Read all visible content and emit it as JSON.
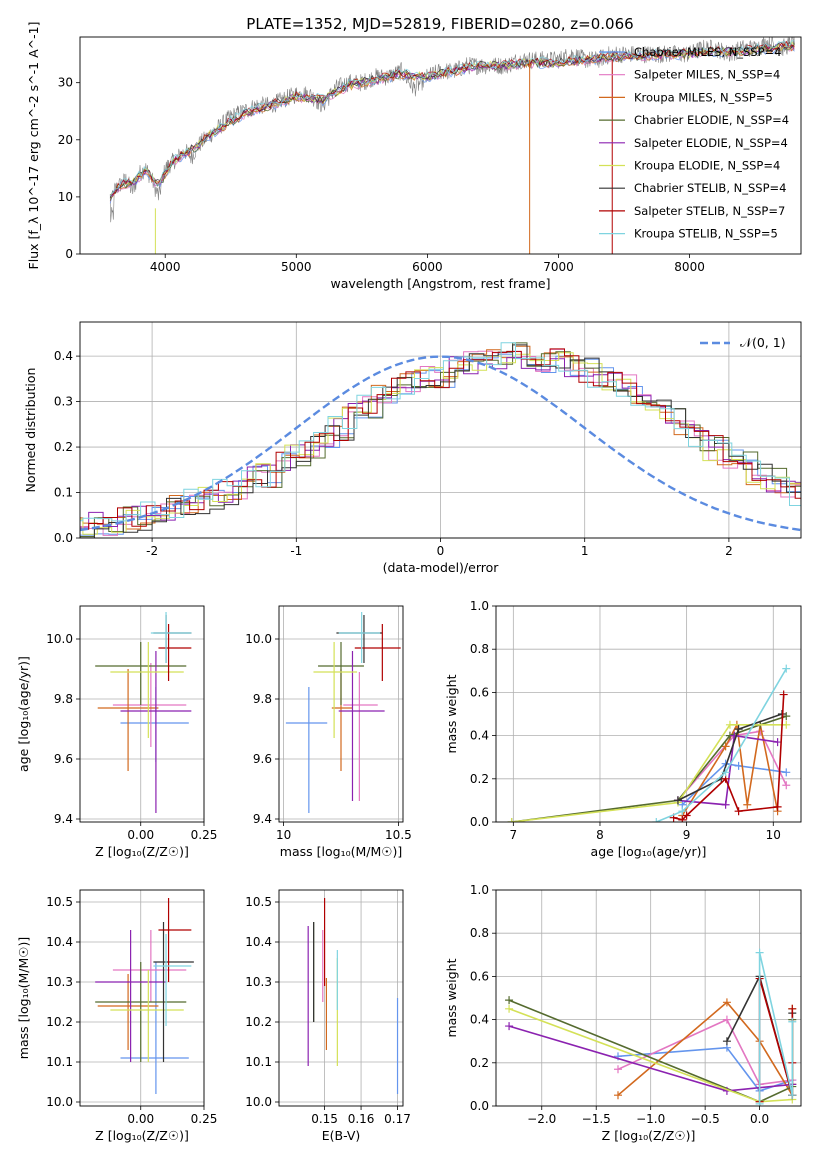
{
  "title": "PLATE=1352, MJD=52819, FIBERID=0280, z=0.066",
  "colors": [
    "#6495ED",
    "#E377C2",
    "#D2691E",
    "#556B2F",
    "#8B22B0",
    "#D4E157",
    "#333333",
    "#B00000",
    "#7FD4E0"
  ],
  "models": [
    "Chabrier MILES, N_SSP=4",
    "Salpeter MILES, N_SSP=4",
    "Kroupa MILES, N_SSP=5",
    "Chabrier ELODIE, N_SSP=4",
    "Salpeter ELODIE, N_SSP=4",
    "Kroupa ELODIE, N_SSP=4",
    "Chabrier STELIB, N_SSP=4",
    "Salpeter STELIB, N_SSP=7",
    "Kroupa STELIB, N_SSP=5"
  ],
  "chart_data": [
    {
      "id": "spectrum",
      "type": "line",
      "title": "PLATE=1352, MJD=52819, FIBERID=0280, z=0.066",
      "xlabel": "wavelength [Angstrom, rest frame]",
      "ylabel": "Flux [f_λ 10^-17 erg cm^-2 s^-1 A^-1]",
      "xlim": [
        3350,
        8850
      ],
      "ylim": [
        0,
        38
      ],
      "xticks": [
        4000,
        5000,
        6000,
        7000,
        8000
      ],
      "yticks": [
        0,
        10,
        20,
        30
      ],
      "legend": "right",
      "data_series": {
        "name": "",
        "color": "#808080",
        "x": [
          3580,
          3600,
          3650,
          3700,
          3750,
          3800,
          3850,
          3900,
          3950,
          4000,
          4050,
          4100,
          4150,
          4200,
          4250,
          4300,
          4350,
          4400,
          4450,
          4500,
          4600,
          4700,
          4800,
          4900,
          5000,
          5100,
          5200,
          5300,
          5400,
          5500,
          5600,
          5700,
          5800,
          5900,
          6000,
          6100,
          6200,
          6300,
          6400,
          6500,
          6600,
          6700,
          6800,
          6900,
          7000,
          7100,
          7200,
          7300,
          7400,
          7500,
          7600,
          7700,
          7800,
          7900,
          8000,
          8100,
          8200,
          8300,
          8400,
          8500,
          8600,
          8700,
          8800
        ],
        "y": [
          10,
          11,
          12,
          13,
          11,
          14,
          15,
          13,
          10,
          15,
          16,
          17,
          18,
          17,
          19,
          20,
          21,
          22,
          23,
          24,
          25,
          26,
          26,
          27,
          28,
          28,
          26,
          29,
          30,
          30,
          31,
          31,
          32,
          29,
          31,
          32,
          32,
          33,
          33,
          33,
          33,
          34,
          34,
          34,
          34,
          35,
          34,
          34,
          35,
          35,
          35,
          35,
          35,
          35,
          35,
          36,
          36,
          35,
          36,
          36,
          37,
          36,
          37
        ]
      },
      "model_series": {
        "x": [
          3580,
          3650,
          3750,
          3850,
          3950,
          4050,
          4150,
          4250,
          4350,
          4450,
          4600,
          4800,
          5000,
          5200,
          5400,
          5600,
          5800,
          6000,
          6200,
          6400,
          6600,
          6800,
          7000,
          7200,
          7400,
          7600,
          7800,
          8000,
          8200,
          8400,
          8600,
          8800
        ],
        "y": [
          9.5,
          12,
          12.5,
          14.5,
          12,
          16,
          17.5,
          19,
          21,
          22.5,
          24.5,
          26,
          27.5,
          27,
          29.5,
          30.5,
          31.5,
          31,
          32,
          33,
          33,
          33.5,
          33.5,
          34,
          34.5,
          34.5,
          35,
          35,
          35.5,
          35.5,
          36,
          36.5
        ]
      }
    },
    {
      "id": "residuals",
      "type": "histogram",
      "xlabel": "(data-model)/error",
      "ylabel": "Normed distribution",
      "xlim": [
        -2.5,
        2.5
      ],
      "ylim": [
        0,
        0.475
      ],
      "xticks": [
        -2,
        -1,
        0,
        1,
        2
      ],
      "yticks": [
        0.0,
        0.1,
        0.2,
        0.3,
        0.4
      ],
      "reference_curve": "𝒩(0, 1)",
      "bin_width": 0.1,
      "legend": "top-right",
      "hist_base": [
        0.02,
        0.03,
        0.03,
        0.04,
        0.04,
        0.05,
        0.06,
        0.07,
        0.08,
        0.09,
        0.1,
        0.11,
        0.13,
        0.14,
        0.16,
        0.18,
        0.2,
        0.22,
        0.24,
        0.27,
        0.29,
        0.31,
        0.33,
        0.34,
        0.35,
        0.36,
        0.37,
        0.38,
        0.39,
        0.39,
        0.4,
        0.4,
        0.39,
        0.39,
        0.38,
        0.37,
        0.36,
        0.35,
        0.33,
        0.31,
        0.29,
        0.27,
        0.24,
        0.22,
        0.2,
        0.18,
        0.16,
        0.14,
        0.13,
        0.11,
        0.1,
        0.09,
        0.08,
        0.07,
        0.06,
        0.05,
        0.05,
        0.04,
        0.04,
        0.03,
        0.03,
        0.03,
        0.03,
        0.02,
        0.02,
        0.02,
        0.03,
        0.03,
        0.03,
        0.04,
        0.04,
        0.04,
        0.03,
        0.03,
        0.03
      ]
    },
    {
      "id": "age-vs-Z",
      "type": "errorbar",
      "xlabel": "Z [log₁₀(Z/Z☉)]",
      "ylabel": "age  [log₁₀(age/yr)]",
      "xlim": [
        -0.24,
        0.25
      ],
      "ylim": [
        9.39,
        10.11
      ],
      "xticks": [
        0.0,
        0.25
      ],
      "xticklabels": [
        "0.00",
        "0.25"
      ],
      "yticks": [
        9.4,
        9.6,
        9.8,
        10.0
      ],
      "points": [
        {
          "x": 0.06,
          "y": 9.72,
          "xerr": [
            0.14,
            0.13
          ],
          "yerr": [
            0.13,
            0.12
          ]
        },
        {
          "x": 0.04,
          "y": 9.78,
          "xerr": [
            0.15,
            0.14
          ],
          "yerr": [
            0.14,
            0.14
          ]
        },
        {
          "x": -0.05,
          "y": 9.77,
          "xerr": [
            0.12,
            0.12
          ],
          "yerr": [
            0.21,
            0.13
          ]
        },
        {
          "x": 0.0,
          "y": 9.91,
          "xerr": [
            0.18,
            0.18
          ],
          "yerr": [
            0.13,
            0.08
          ]
        },
        {
          "x": 0.06,
          "y": 9.76,
          "xerr": [
            0.14,
            0.14
          ],
          "yerr": [
            0.34,
            0.2
          ]
        },
        {
          "x": 0.03,
          "y": 9.89,
          "xerr": [
            0.15,
            0.14
          ],
          "yerr": [
            0.22,
            0.1
          ]
        },
        {
          "x": 0.1,
          "y": 10.02,
          "xerr": [
            0.05,
            0.1
          ],
          "yerr": [
            0.1,
            0.06
          ]
        },
        {
          "x": 0.11,
          "y": 9.97,
          "xerr": [
            0.04,
            0.09
          ],
          "yerr": [
            0.11,
            0.08
          ]
        },
        {
          "x": 0.1,
          "y": 10.02,
          "xerr": [
            0.06,
            0.1
          ],
          "yerr": [
            0.1,
            0.07
          ]
        }
      ]
    },
    {
      "id": "age-vs-mass",
      "type": "errorbar",
      "xlabel": "mass [log₁₀(M/M☉)]",
      "ylabel": "",
      "xlim": [
        9.98,
        10.52
      ],
      "ylim": [
        9.39,
        10.11
      ],
      "xticks": [
        10.0,
        10.5
      ],
      "yticks": [
        9.4,
        9.6,
        9.8,
        10.0
      ],
      "points": [
        {
          "x": 10.11,
          "y": 9.72,
          "xerr": [
            0.1,
            0.08
          ],
          "yerr": [
            0.3,
            0.12
          ]
        },
        {
          "x": 10.33,
          "y": 9.78,
          "xerr": [
            0.07,
            0.08
          ],
          "yerr": [
            0.32,
            0.11
          ]
        },
        {
          "x": 10.25,
          "y": 9.77,
          "xerr": [
            0.04,
            0.05
          ],
          "yerr": [
            0.21,
            0.13
          ]
        },
        {
          "x": 10.25,
          "y": 9.91,
          "xerr": [
            0.1,
            0.1
          ],
          "yerr": [
            0.13,
            0.08
          ]
        },
        {
          "x": 10.3,
          "y": 9.76,
          "xerr": [
            0.06,
            0.14
          ],
          "yerr": [
            0.3,
            0.2
          ]
        },
        {
          "x": 10.22,
          "y": 9.89,
          "xerr": [
            0.09,
            0.1
          ],
          "yerr": [
            0.22,
            0.1
          ]
        },
        {
          "x": 10.35,
          "y": 10.02,
          "xerr": [
            0.12,
            0.08
          ],
          "yerr": [
            0.1,
            0.06
          ]
        },
        {
          "x": 10.43,
          "y": 9.97,
          "xerr": [
            0.12,
            0.08
          ],
          "yerr": [
            0.11,
            0.08
          ]
        },
        {
          "x": 10.34,
          "y": 10.02,
          "xerr": [
            0.1,
            0.08
          ],
          "yerr": [
            0.1,
            0.07
          ]
        }
      ]
    },
    {
      "id": "weight-vs-age",
      "type": "line",
      "xlabel": "age  [log₁₀(age/yr)]",
      "ylabel": "mass weight",
      "xlim": [
        6.8,
        10.32
      ],
      "ylim": [
        0,
        1
      ],
      "xticks": [
        7,
        8,
        9,
        10
      ],
      "yticks": [
        0.0,
        0.2,
        0.4,
        0.6,
        0.8,
        1.0
      ],
      "series": [
        {
          "x": [
            8.95,
            9.45,
            9.6,
            10.15
          ],
          "y": [
            0.08,
            0.27,
            0.26,
            0.23
          ]
        },
        {
          "x": [
            8.9,
            9.55,
            9.85,
            10.15
          ],
          "y": [
            0.1,
            0.4,
            0.42,
            0.17
          ]
        },
        {
          "x": [
            8.95,
            9.45,
            9.58,
            9.7,
            9.85,
            10.05
          ],
          "y": [
            0.03,
            0.35,
            0.45,
            0.08,
            0.45,
            0.05
          ]
        },
        {
          "x": [
            6.98,
            8.9,
            9.5,
            9.85,
            10.15
          ],
          "y": [
            0.0,
            0.1,
            0.4,
            0.45,
            0.49
          ]
        },
        {
          "x": [
            8.9,
            9.45,
            9.55,
            10.05
          ],
          "y": [
            0.1,
            0.08,
            0.4,
            0.37
          ]
        },
        {
          "x": [
            6.98,
            8.9,
            9.5,
            10.15
          ],
          "y": [
            0.0,
            0.09,
            0.45,
            0.45
          ]
        },
        {
          "x": [
            8.9,
            9.4,
            9.6,
            10.1
          ],
          "y": [
            0.1,
            0.2,
            0.43,
            0.5
          ]
        },
        {
          "x": [
            8.85,
            8.95,
            9.0,
            9.45,
            9.6,
            10.05,
            10.12
          ],
          "y": [
            0.02,
            0.01,
            0.03,
            0.2,
            0.05,
            0.07,
            0.59
          ]
        },
        {
          "x": [
            8.65,
            8.95,
            9.45,
            10.15
          ],
          "y": [
            0.0,
            0.05,
            0.23,
            0.71
          ]
        }
      ]
    },
    {
      "id": "mass-vs-Z",
      "type": "errorbar",
      "xlabel": "Z [log₁₀(Z/Z☉)]",
      "ylabel": "mass [log₁₀(M/M☉)]",
      "xlim": [
        -0.24,
        0.25
      ],
      "ylim": [
        9.99,
        10.53
      ],
      "xticks": [
        0.0,
        0.25
      ],
      "xticklabels": [
        "0.00",
        "0.25"
      ],
      "yticks": [
        10.0,
        10.1,
        10.2,
        10.3,
        10.4,
        10.5
      ],
      "points": [
        {
          "x": 0.06,
          "y": 10.11,
          "xerr": [
            0.14,
            0.13
          ],
          "yerr": [
            0.09,
            0.24
          ]
        },
        {
          "x": 0.04,
          "y": 10.33,
          "xerr": [
            0.15,
            0.14
          ],
          "yerr": [
            0.08,
            0.1
          ]
        },
        {
          "x": -0.05,
          "y": 10.24,
          "xerr": [
            0.12,
            0.12
          ],
          "yerr": [
            0.11,
            0.08
          ]
        },
        {
          "x": 0.0,
          "y": 10.25,
          "xerr": [
            0.18,
            0.18
          ],
          "yerr": [
            0.15,
            0.1
          ]
        },
        {
          "x": -0.04,
          "y": 10.3,
          "xerr": [
            0.14,
            0.14
          ],
          "yerr": [
            0.2,
            0.13
          ]
        },
        {
          "x": 0.03,
          "y": 10.23,
          "xerr": [
            0.15,
            0.14
          ],
          "yerr": [
            0.13,
            0.1
          ]
        },
        {
          "x": 0.09,
          "y": 10.35,
          "xerr": [
            0.04,
            0.12
          ],
          "yerr": [
            0.25,
            0.1
          ]
        },
        {
          "x": 0.11,
          "y": 10.43,
          "xerr": [
            0.04,
            0.09
          ],
          "yerr": [
            0.13,
            0.08
          ]
        },
        {
          "x": 0.1,
          "y": 10.34,
          "xerr": [
            0.05,
            0.1
          ],
          "yerr": [
            0.15,
            0.08
          ]
        }
      ]
    },
    {
      "id": "mass-vs-EBV",
      "type": "errorbar",
      "xlabel": "E(B-V)",
      "ylabel": "",
      "xlim": [
        0.1375,
        0.1715
      ],
      "ylim": [
        9.99,
        10.53
      ],
      "xticks": [
        0.15,
        0.16,
        0.17
      ],
      "xticklabels": [
        "0.15",
        "0.16",
        "0.17"
      ],
      "yticks": [
        10.0,
        10.1,
        10.2,
        10.3,
        10.4,
        10.5
      ],
      "points": [
        {
          "x": 0.17,
          "y": 10.12,
          "xerr": [
            0,
            0
          ],
          "yerr": [
            0.1,
            0.14
          ]
        },
        {
          "x": 0.1495,
          "y": 10.33,
          "xerr": [
            0,
            0
          ],
          "yerr": [
            0.08,
            0.1
          ]
        },
        {
          "x": 0.1505,
          "y": 10.25,
          "xerr": [
            0,
            0
          ],
          "yerr": [
            0.12,
            0.06
          ]
        },
        {
          "x": 0.147,
          "y": 10.3,
          "xerr": [
            0,
            0
          ],
          "yerr": [
            0.1,
            0.15
          ]
        },
        {
          "x": 0.1455,
          "y": 10.27,
          "xerr": [
            0,
            0
          ],
          "yerr": [
            0.18,
            0.17
          ]
        },
        {
          "x": 0.1535,
          "y": 10.23,
          "xerr": [
            0,
            0
          ],
          "yerr": [
            0.14,
            0.13
          ]
        },
        {
          "x": 0.147,
          "y": 10.32,
          "xerr": [
            0,
            0
          ],
          "yerr": [
            0.12,
            0.13
          ]
        },
        {
          "x": 0.15,
          "y": 10.38,
          "xerr": [
            0,
            0
          ],
          "yerr": [
            0.09,
            0.13
          ]
        },
        {
          "x": 0.1535,
          "y": 10.33,
          "xerr": [
            0,
            0
          ],
          "yerr": [
            0.1,
            0.05
          ]
        }
      ]
    },
    {
      "id": "weight-vs-Z",
      "type": "line",
      "xlabel": "Z [log₁₀(Z/Z☉)]",
      "ylabel": "mass weight",
      "xlim": [
        -2.42,
        0.38
      ],
      "ylim": [
        0,
        1
      ],
      "xticks": [
        -2.0,
        -1.5,
        -1.0,
        -0.5,
        0.0
      ],
      "xticklabels": [
        "−2.0",
        "−1.5",
        "−1.0",
        "−0.5",
        "0.0"
      ],
      "yticks": [
        0.0,
        0.2,
        0.4,
        0.6,
        0.8,
        1.0
      ],
      "series": [
        {
          "x": [
            -1.3,
            -0.3,
            0.0,
            0.3
          ],
          "y": [
            0.23,
            0.27,
            0.07,
            0.12
          ]
        },
        {
          "x": [
            -1.3,
            -0.3,
            0.0,
            0.3
          ],
          "y": [
            0.17,
            0.4,
            0.1,
            0.12
          ]
        },
        {
          "x": [
            -1.3,
            -0.3,
            0.0,
            0.3,
            0.3
          ],
          "y": [
            0.05,
            0.48,
            0.3,
            0.05,
            0.1
          ]
        },
        {
          "x": [
            -2.3,
            0.0,
            0.3,
            0.3
          ],
          "y": [
            0.49,
            0.02,
            0.09,
            0.4
          ]
        },
        {
          "x": [
            -2.3,
            -0.3,
            0.3
          ],
          "y": [
            0.37,
            0.07,
            0.1
          ]
        },
        {
          "x": [
            -2.3,
            0.0,
            0.3,
            0.3
          ],
          "y": [
            0.45,
            0.02,
            0.03,
            0.45
          ]
        },
        {
          "x": [
            -0.3,
            0.0,
            0.3,
            0.3
          ],
          "y": [
            0.3,
            0.6,
            0.05,
            0.43
          ]
        },
        {
          "x": [
            -0.0,
            0.0,
            0.3,
            0.3,
            0.3
          ],
          "y": [
            0.02,
            0.59,
            0.05,
            0.2,
            0.45
          ]
        },
        {
          "x": [
            -0.0,
            0.0,
            0.3,
            0.3
          ],
          "y": [
            0.01,
            0.71,
            0.05,
            0.39
          ]
        }
      ]
    }
  ]
}
